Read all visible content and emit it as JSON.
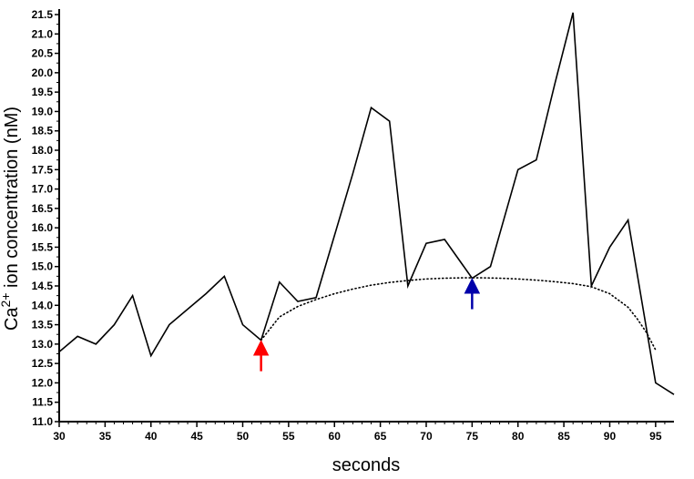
{
  "chart_data": {
    "type": "line",
    "xlabel": "seconds",
    "ylabel_parts": [
      "Ca",
      "2+",
      " ion concentration (nM)"
    ],
    "xlim": [
      30,
      97
    ],
    "ylim": [
      11.0,
      21.6
    ],
    "x_ticks": [
      30,
      35,
      40,
      45,
      50,
      55,
      60,
      65,
      70,
      75,
      80,
      85,
      90,
      95
    ],
    "y_ticks": [
      "11.0",
      "11.5",
      "12.0",
      "12.5",
      "13.0",
      "13.5",
      "14.0",
      "14.5",
      "15.0",
      "15.5",
      "16.0",
      "16.5",
      "17.0",
      "17.5",
      "18.0",
      "18.5",
      "19.0",
      "19.5",
      "20.0",
      "20.5",
      "21.0",
      "21.5"
    ],
    "grid": false,
    "series": [
      {
        "style": "solid",
        "color": "#000000",
        "x": [
          30,
          32,
          34,
          36,
          38,
          40,
          42,
          44,
          46,
          48,
          50,
          52,
          54,
          56,
          58,
          60,
          62,
          64,
          66,
          68,
          70,
          72,
          75,
          77,
          80,
          82,
          84,
          86,
          88,
          90,
          92,
          95,
          97
        ],
        "y": [
          12.8,
          13.2,
          13.0,
          13.5,
          14.25,
          12.7,
          13.5,
          13.9,
          14.3,
          14.75,
          13.5,
          13.1,
          14.6,
          14.1,
          14.2,
          15.8,
          17.4,
          19.1,
          18.75,
          14.5,
          15.6,
          15.7,
          14.7,
          15.0,
          17.5,
          17.75,
          19.7,
          21.55,
          14.5,
          15.5,
          16.2,
          12.0,
          11.7
        ]
      },
      {
        "style": "dotted",
        "color": "#000000",
        "x": [
          52,
          54,
          56,
          58,
          60,
          62,
          64,
          66,
          68,
          70,
          72,
          74,
          76,
          78,
          80,
          82,
          84,
          86,
          88,
          90,
          92,
          93,
          94,
          95
        ],
        "y": [
          13.1,
          13.7,
          13.97,
          14.15,
          14.3,
          14.42,
          14.52,
          14.59,
          14.64,
          14.68,
          14.7,
          14.71,
          14.71,
          14.7,
          14.68,
          14.65,
          14.61,
          14.56,
          14.48,
          14.3,
          13.95,
          13.65,
          13.3,
          12.85
        ]
      }
    ],
    "annotations": [
      {
        "type": "arrow",
        "color": "#ff0000",
        "x": 52,
        "y_from": 12.3,
        "y_to": 13.0,
        "direction": "up"
      },
      {
        "type": "arrow",
        "color": "#0000aa",
        "x": 75,
        "y_from": 13.9,
        "y_to": 14.6,
        "direction": "up"
      }
    ]
  }
}
